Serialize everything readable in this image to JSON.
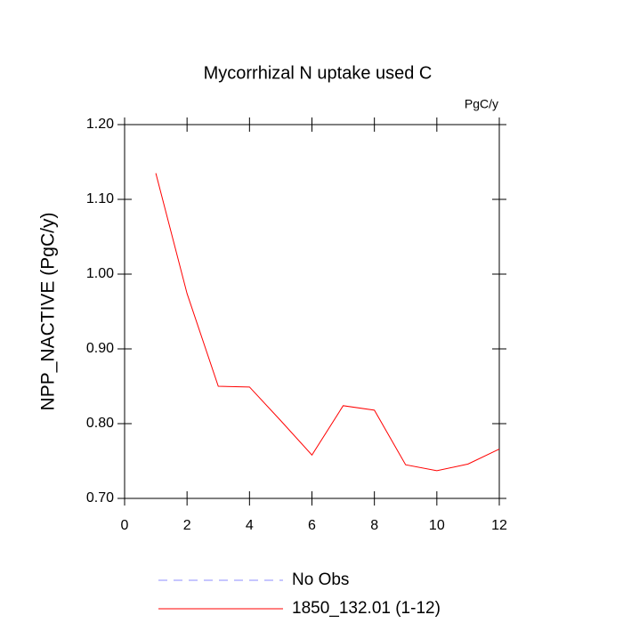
{
  "chart_data": {
    "type": "line",
    "title": "Mycorrhizal N uptake used C",
    "units_label": "PgC/y",
    "y_label": "NPP_NACTIVE  (PgC/y)",
    "x": [
      1,
      2,
      3,
      4,
      5,
      6,
      7,
      8,
      9,
      10,
      11,
      12
    ],
    "series": [
      {
        "name": "No Obs",
        "color": "#8c8cff",
        "dashed": true,
        "values": [
          null,
          null,
          null,
          null,
          null,
          null,
          null,
          null,
          null,
          null,
          null,
          null
        ]
      },
      {
        "name": "1850_132.01 (1-12)",
        "color": "#ff0000",
        "dashed": false,
        "values": [
          1.135,
          0.974,
          0.85,
          0.849,
          0.804,
          0.758,
          0.824,
          0.818,
          0.745,
          0.737,
          0.746,
          0.766
        ]
      }
    ],
    "xlim": [
      0,
      12
    ],
    "xticks": [
      0,
      2,
      4,
      6,
      8,
      10,
      12
    ],
    "ylim": [
      0.7,
      1.2
    ],
    "yticks": [
      {
        "value": 0.7,
        "label": "0.70"
      },
      {
        "value": 0.8,
        "label": "0.80"
      },
      {
        "value": 0.9,
        "label": "0.90"
      },
      {
        "value": 1.0,
        "label": "1.00"
      },
      {
        "value": 1.1,
        "label": "1.10"
      },
      {
        "value": 1.2,
        "label": "1.20"
      }
    ],
    "grid": false
  }
}
